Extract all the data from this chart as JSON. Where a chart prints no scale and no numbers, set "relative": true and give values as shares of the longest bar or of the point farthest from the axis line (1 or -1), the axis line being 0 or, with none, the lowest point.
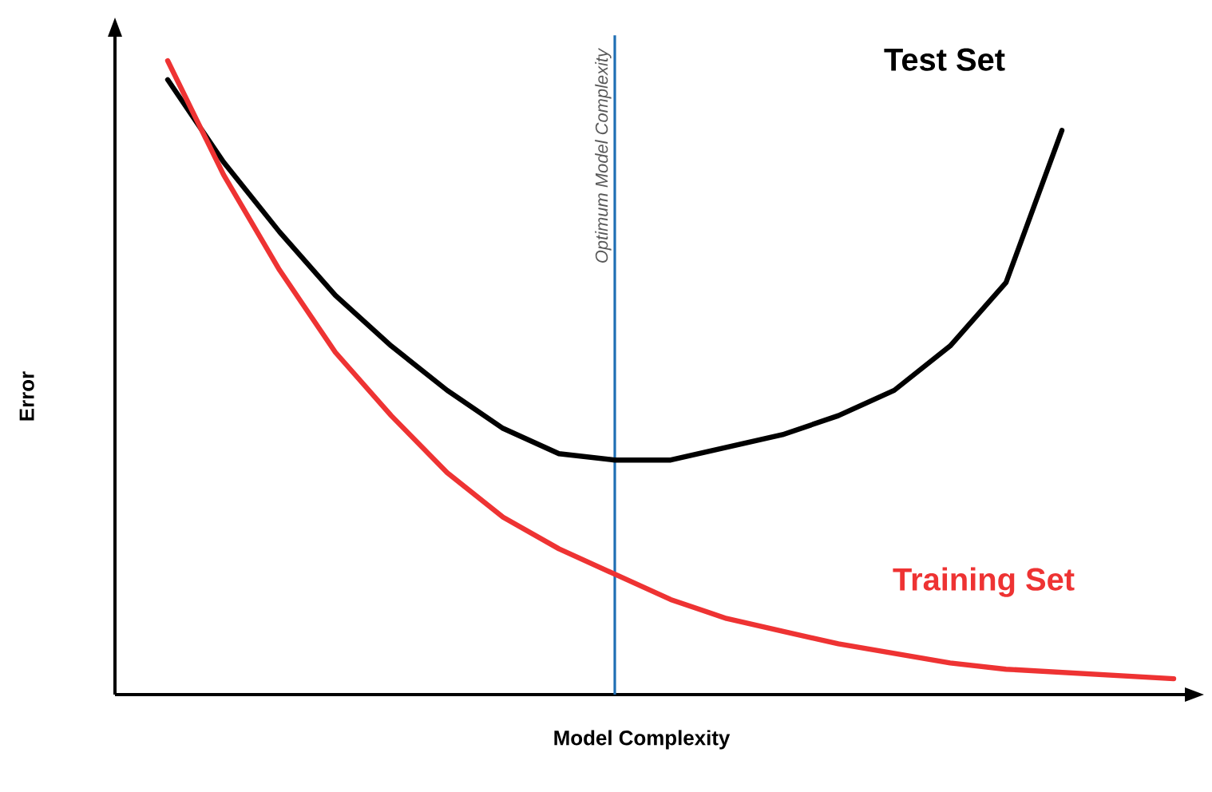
{
  "chart_data": {
    "type": "line",
    "relative": true,
    "xlabel": "Model Complexity",
    "ylabel": "Error",
    "legend": false,
    "annotations": [
      "Optimum Model Complexity"
    ],
    "categories": [
      null,
      null,
      null,
      null,
      null,
      null,
      null,
      null,
      null,
      null,
      null,
      null,
      null,
      null,
      null,
      null,
      null,
      null,
      null
    ],
    "series": [
      {
        "name": "Test Set",
        "color": "#000000",
        "values": [
          0.97,
          0.84,
          0.73,
          0.63,
          0.55,
          0.48,
          0.42,
          0.38,
          0.37,
          0.37,
          0.39,
          0.41,
          0.44,
          0.48,
          0.55,
          0.65,
          0.89,
          null,
          null
        ]
      },
      {
        "name": "Training Set",
        "color": "#ee3333",
        "values": [
          1.0,
          0.82,
          0.67,
          0.54,
          0.44,
          0.35,
          0.28,
          0.23,
          0.19,
          0.15,
          0.12,
          0.1,
          0.08,
          0.065,
          0.05,
          0.04,
          0.035,
          0.03,
          0.025
        ]
      }
    ]
  }
}
